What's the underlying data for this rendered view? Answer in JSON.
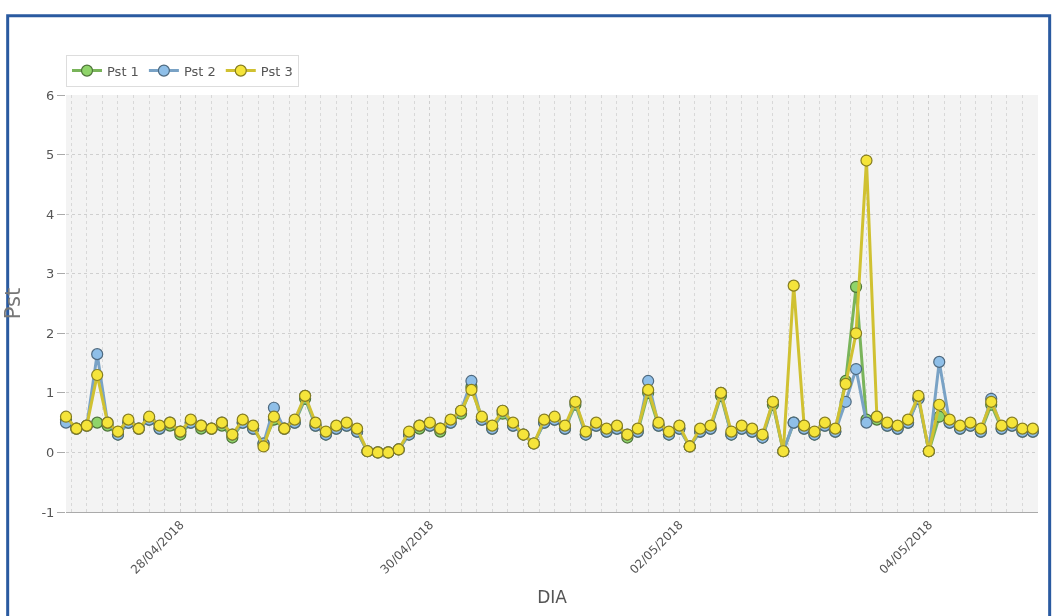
{
  "chart_data": {
    "type": "line",
    "xlabel": "DIA",
    "ylabel": "Pst",
    "x": [
      "2018-04-27T02:00",
      "2018-04-27T04:00",
      "2018-04-27T06:00",
      "2018-04-27T08:00",
      "2018-04-27T10:00",
      "2018-04-27T12:00",
      "2018-04-27T14:00",
      "2018-04-27T16:00",
      "2018-04-27T18:00",
      "2018-04-27T20:00",
      "2018-04-27T22:00",
      "2018-04-28T00:00",
      "2018-04-28T02:00",
      "2018-04-28T04:00",
      "2018-04-28T06:00",
      "2018-04-28T08:00",
      "2018-04-28T10:00",
      "2018-04-28T12:00",
      "2018-04-28T14:00",
      "2018-04-28T16:00",
      "2018-04-28T18:00",
      "2018-04-28T20:00",
      "2018-04-28T22:00",
      "2018-04-29T00:00",
      "2018-04-29T02:00",
      "2018-04-29T04:00",
      "2018-04-29T06:00",
      "2018-04-29T08:00",
      "2018-04-29T10:00",
      "2018-04-29T12:00",
      "2018-04-29T14:00",
      "2018-04-29T16:00",
      "2018-04-29T18:00",
      "2018-04-29T20:00",
      "2018-04-29T22:00",
      "2018-04-30T00:00",
      "2018-04-30T02:00",
      "2018-04-30T04:00",
      "2018-04-30T06:00",
      "2018-04-30T08:00",
      "2018-04-30T10:00",
      "2018-04-30T12:00",
      "2018-04-30T14:00",
      "2018-04-30T16:00",
      "2018-04-30T18:00",
      "2018-04-30T20:00",
      "2018-04-30T22:00",
      "2018-05-01T00:00",
      "2018-05-01T02:00",
      "2018-05-01T04:00",
      "2018-05-01T06:00",
      "2018-05-01T08:00",
      "2018-05-01T10:00",
      "2018-05-01T12:00",
      "2018-05-01T14:00",
      "2018-05-01T16:00",
      "2018-05-01T18:00",
      "2018-05-01T20:00",
      "2018-05-01T22:00",
      "2018-05-02T00:00",
      "2018-05-02T02:00",
      "2018-05-02T04:00",
      "2018-05-02T06:00",
      "2018-05-02T08:00",
      "2018-05-02T10:00",
      "2018-05-02T12:00",
      "2018-05-02T14:00",
      "2018-05-02T16:00",
      "2018-05-02T18:00",
      "2018-05-02T20:00",
      "2018-05-02T22:00",
      "2018-05-03T00:00",
      "2018-05-03T02:00",
      "2018-05-03T04:00",
      "2018-05-03T06:00",
      "2018-05-03T08:00",
      "2018-05-03T10:00",
      "2018-05-03T12:00",
      "2018-05-03T14:00",
      "2018-05-03T16:00",
      "2018-05-03T18:00",
      "2018-05-03T20:00",
      "2018-05-03T22:00",
      "2018-05-04T00:00",
      "2018-05-04T02:00",
      "2018-05-04T04:00",
      "2018-05-04T06:00",
      "2018-05-04T08:00",
      "2018-05-04T10:00",
      "2018-05-04T12:00",
      "2018-05-04T14:00",
      "2018-05-04T16:00",
      "2018-05-04T18:00",
      "2018-05-04T20:00"
    ],
    "xlim": [
      "2018-04-27T02:00",
      "2018-05-04T21:00"
    ],
    "xticks": [
      {
        "value": "2018-04-28",
        "label": "28/04/2018"
      },
      {
        "value": "2018-04-30",
        "label": "30/04/2018"
      },
      {
        "value": "2018-05-02",
        "label": "02/05/2018"
      },
      {
        "value": "2018-05-04",
        "label": "04/05/2018"
      }
    ],
    "ylim": [
      -1,
      6
    ],
    "yticks": [
      -1,
      0,
      1,
      2,
      3,
      4,
      5,
      6
    ],
    "grid": true,
    "legend": "top left",
    "marker": "circle",
    "line_style": "solid",
    "series": [
      {
        "name": "Pst 1",
        "color": "#8fd46a",
        "values": [
          0.55,
          0.4,
          0.45,
          0.5,
          0.45,
          0.3,
          0.5,
          0.4,
          0.55,
          0.4,
          0.45,
          0.3,
          0.5,
          0.4,
          0.4,
          0.45,
          0.25,
          0.5,
          0.4,
          0.15,
          0.55,
          0.4,
          0.5,
          0.9,
          0.45,
          0.3,
          0.4,
          0.45,
          0.35,
          0.02,
          0.0,
          0.0,
          0.05,
          0.3,
          0.4,
          0.45,
          0.35,
          0.5,
          0.65,
          1.1,
          0.55,
          0.4,
          0.65,
          0.45,
          0.3,
          0.15,
          0.5,
          0.55,
          0.4,
          0.8,
          0.3,
          0.45,
          0.35,
          0.4,
          0.25,
          0.35,
          1.0,
          0.45,
          0.3,
          0.4,
          0.1,
          0.35,
          0.4,
          0.95,
          0.3,
          0.4,
          0.35,
          0.25,
          0.8,
          0.02,
          0.5,
          0.4,
          0.3,
          0.45,
          0.35,
          1.2,
          2.78,
          0.55,
          0.55,
          0.45,
          0.4,
          0.5,
          0.9,
          0.02,
          0.6,
          0.5,
          0.4,
          0.45,
          0.35,
          0.8,
          0.4,
          0.45,
          0.35,
          0.35
        ]
      },
      {
        "name": "Pst 2",
        "color": "#8fbfe8",
        "values": [
          0.5,
          0.4,
          0.45,
          1.65,
          0.5,
          0.3,
          0.5,
          0.4,
          0.55,
          0.4,
          0.5,
          0.35,
          0.5,
          0.45,
          0.4,
          0.5,
          0.3,
          0.5,
          0.4,
          0.15,
          0.75,
          0.4,
          0.5,
          0.95,
          0.45,
          0.3,
          0.4,
          0.45,
          0.35,
          0.02,
          0.0,
          0.0,
          0.05,
          0.3,
          0.45,
          0.45,
          0.4,
          0.5,
          0.7,
          1.2,
          0.55,
          0.4,
          0.7,
          0.45,
          0.3,
          0.15,
          0.5,
          0.55,
          0.4,
          0.85,
          0.3,
          0.45,
          0.35,
          0.4,
          0.3,
          0.35,
          1.2,
          0.45,
          0.3,
          0.4,
          0.1,
          0.35,
          0.4,
          1.0,
          0.3,
          0.4,
          0.35,
          0.25,
          0.85,
          0.02,
          0.5,
          0.4,
          0.3,
          0.45,
          0.35,
          0.85,
          1.4,
          0.5,
          0.6,
          0.45,
          0.4,
          0.5,
          0.9,
          0.02,
          1.52,
          0.5,
          0.4,
          0.45,
          0.35,
          0.9,
          0.4,
          0.45,
          0.35,
          0.35
        ]
      },
      {
        "name": "Pst 3",
        "color": "#f5e43a",
        "values": [
          0.6,
          0.4,
          0.45,
          1.3,
          0.5,
          0.35,
          0.55,
          0.4,
          0.6,
          0.45,
          0.5,
          0.35,
          0.55,
          0.45,
          0.4,
          0.5,
          0.3,
          0.55,
          0.45,
          0.1,
          0.6,
          0.4,
          0.55,
          0.95,
          0.5,
          0.35,
          0.45,
          0.5,
          0.4,
          0.02,
          0.0,
          0.0,
          0.05,
          0.35,
          0.45,
          0.5,
          0.4,
          0.55,
          0.7,
          1.05,
          0.6,
          0.45,
          0.7,
          0.5,
          0.3,
          0.15,
          0.55,
          0.6,
          0.45,
          0.85,
          0.35,
          0.5,
          0.4,
          0.45,
          0.3,
          0.4,
          1.05,
          0.5,
          0.35,
          0.45,
          0.1,
          0.4,
          0.45,
          1.0,
          0.35,
          0.45,
          0.4,
          0.3,
          0.85,
          0.02,
          2.8,
          0.45,
          0.35,
          0.5,
          0.4,
          1.15,
          2.0,
          4.9,
          0.6,
          0.5,
          0.45,
          0.55,
          0.95,
          0.02,
          0.8,
          0.55,
          0.45,
          0.5,
          0.4,
          0.85,
          0.45,
          0.5,
          0.4,
          0.4
        ]
      }
    ]
  }
}
